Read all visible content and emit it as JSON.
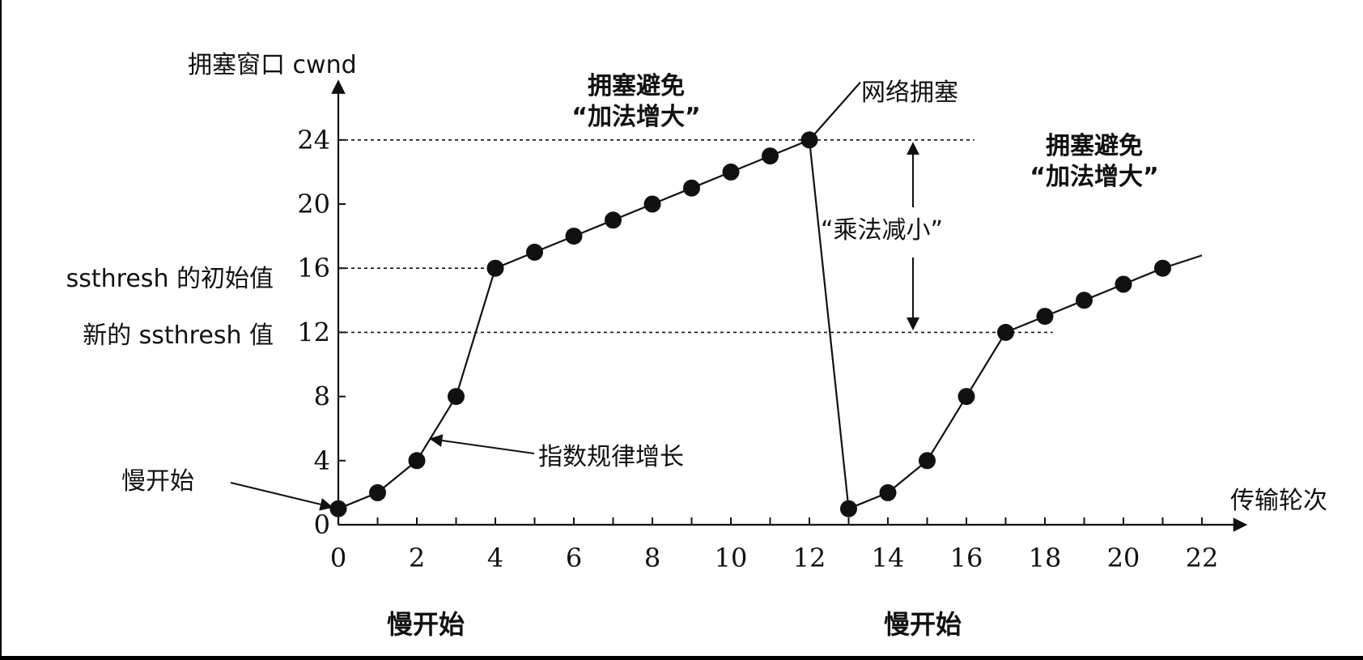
{
  "chart_data": {
    "type": "line",
    "ylabel": "拥塞窗口 cwnd",
    "xlabel": "传输轮次",
    "x_ticks": [
      0,
      2,
      4,
      6,
      8,
      10,
      12,
      14,
      16,
      18,
      20,
      22
    ],
    "x_tick_labels": [
      "0",
      "2",
      "4",
      "6",
      "8",
      "10",
      "12",
      "14",
      "16",
      "18",
      "20",
      "22"
    ],
    "y_ticks": [
      0,
      4,
      8,
      12,
      16,
      20,
      24
    ],
    "y_tick_labels": [
      "0",
      "4",
      "8",
      "12",
      "16",
      "20",
      "24"
    ],
    "xlim": [
      0,
      23
    ],
    "ylim": [
      0,
      27
    ],
    "series": [
      {
        "x": [
          0,
          1,
          2,
          3,
          4,
          5,
          6,
          7,
          8,
          9,
          10,
          11,
          12,
          13,
          14,
          15,
          16,
          17,
          18,
          19,
          20,
          21
        ],
        "y": [
          1,
          2,
          4,
          8,
          16,
          17,
          18,
          19,
          20,
          21,
          22,
          23,
          24,
          1,
          2,
          4,
          8,
          12,
          13,
          14,
          15,
          16
        ]
      }
    ],
    "thresholds": {
      "ssthresh_initial": {
        "value": 16,
        "label": "ssthresh 的初始值"
      },
      "ssthresh_new": {
        "value": 12,
        "label": "新的 ssthresh 值"
      },
      "peak": {
        "value": 24
      }
    },
    "annotations": {
      "slow_start_left": "慢开始",
      "exponential_growth": "指数规律增长",
      "congestion_avoidance_1_line1": "拥塞避免",
      "congestion_avoidance_1_line2": "“加法增大”",
      "network_congestion": "网络拥塞",
      "multiplicative_decrease": "“乘法减小”",
      "congestion_avoidance_2_line1": "拥塞避免",
      "congestion_avoidance_2_line2": "“加法增大”",
      "slow_start_bottom_1": "慢开始",
      "slow_start_bottom_2": "慢开始"
    },
    "colors": {
      "background": "#ffffff",
      "ink": "#111111",
      "page_border": "#000000"
    }
  }
}
